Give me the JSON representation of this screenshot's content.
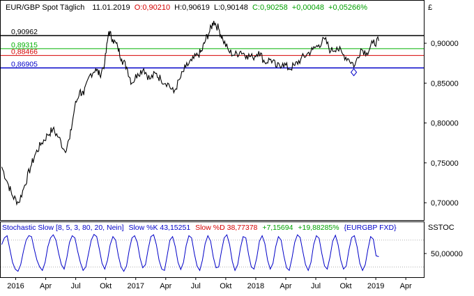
{
  "colors": {
    "frame": "#000000",
    "price_line": "#000000",
    "line_high": "#000000",
    "line_mid_green": "#00b000",
    "line_mid_red": "#d40000",
    "line_low": "#0000c8",
    "stoch_k": "#0000c8",
    "positive": "#00a000",
    "negative": "#d40000",
    "stoch_title": "#0000c8",
    "guides": "#808080"
  },
  "chart_data": [
    {
      "type": "line",
      "title": "EUR/GBP Spot Täglich",
      "header": {
        "symbol": "EUR/GBP Spot Täglich",
        "date": "11.01.2019",
        "open": "O:0,90210",
        "high": "H:0,90619",
        "low": "L:0,90148",
        "close": "C:0,90258",
        "change": "+0,00048",
        "change_pct": "+0,05266%"
      },
      "currency_symbol": "£",
      "ylim": [
        0.68,
        0.935
      ],
      "y_ticks": [
        0.7,
        0.75,
        0.8,
        0.85,
        0.9
      ],
      "y_tick_labels": [
        "0,70000",
        "0,75000",
        "0,80000",
        "0,85000",
        "0,90000"
      ],
      "horizontal_lines": [
        {
          "label": "0,90962",
          "value": 0.90962,
          "color_key": "line_high",
          "width": 1.5
        },
        {
          "label": "0,89315",
          "value": 0.89315,
          "color_key": "line_mid_green",
          "width": 1
        },
        {
          "label": "0,88466",
          "value": 0.88466,
          "color_key": "line_mid_red",
          "width": 1
        },
        {
          "label": "0,86905",
          "value": 0.86905,
          "color_key": "line_low",
          "width": 1.5
        }
      ],
      "x_ticks": [
        "2016",
        "Apr",
        "Jul",
        "Okt",
        "2017",
        "Apr",
        "Jul",
        "Okt",
        "2018",
        "Apr",
        "Jul",
        "Okt",
        "2019",
        "Apr"
      ],
      "x_tick_months": [
        0,
        3,
        6,
        9,
        12,
        15,
        18,
        21,
        24,
        27,
        30,
        33,
        36,
        39
      ],
      "x_range_months": [
        -1.5,
        40.8
      ],
      "series": [
        {
          "name": "",
          "x_months": [
            -1.4,
            -0.8,
            -0.3,
            0.3,
            0.9,
            1.5,
            2.0,
            2.6,
            3.2,
            3.7,
            4.3,
            4.9,
            5.4,
            5.9,
            6.4,
            6.8,
            7.4,
            8.0,
            8.4,
            8.9,
            9.3,
            9.7,
            10.2,
            10.6,
            11.1,
            11.6,
            12.2,
            12.8,
            13.4,
            14.0,
            14.5,
            15.2,
            15.8,
            16.4,
            17.0,
            17.6,
            18.2,
            18.6,
            19.0,
            19.4,
            19.8,
            20.3,
            20.7,
            21.3,
            21.9,
            22.5,
            23.1,
            23.7,
            24.3,
            24.9,
            25.5,
            26.1,
            26.7,
            27.3,
            27.9,
            28.5,
            29.1,
            29.7,
            30.3,
            30.9,
            31.5,
            32.1,
            32.7,
            33.3,
            33.9,
            34.5,
            35.1,
            35.7,
            36.3
          ],
          "values": [
            0.745,
            0.725,
            0.708,
            0.7,
            0.722,
            0.745,
            0.762,
            0.775,
            0.785,
            0.792,
            0.782,
            0.765,
            0.78,
            0.82,
            0.84,
            0.835,
            0.86,
            0.868,
            0.86,
            0.875,
            0.915,
            0.905,
            0.895,
            0.88,
            0.87,
            0.85,
            0.862,
            0.868,
            0.855,
            0.862,
            0.855,
            0.85,
            0.838,
            0.855,
            0.87,
            0.878,
            0.885,
            0.89,
            0.905,
            0.915,
            0.928,
            0.918,
            0.905,
            0.89,
            0.885,
            0.89,
            0.885,
            0.882,
            0.89,
            0.876,
            0.88,
            0.87,
            0.875,
            0.868,
            0.872,
            0.88,
            0.886,
            0.892,
            0.898,
            0.905,
            0.89,
            0.895,
            0.886,
            0.88,
            0.872,
            0.893,
            0.888,
            0.9,
            0.903
          ]
        }
      ],
      "marker": {
        "x_months": 33.8,
        "value": 0.868
      }
    },
    {
      "type": "line",
      "title": "Stochastic Slow [8, 5, 3, 80, 20, Nein]",
      "header": {
        "name": "Stochastic Slow [8, 5, 3, 80, 20, Nein]",
        "k_label": "Slow %K 43,15251",
        "d_label": "Slow %D 38,77378",
        "change": "+7,15694",
        "change_pct": "+19,88285%",
        "symbol": "{EURGBP FXD}"
      },
      "panel_label": "SSTOC",
      "ylim": [
        0,
        100
      ],
      "y_ticks": [
        50
      ],
      "y_tick_labels": [
        "50,00000"
      ],
      "guide_levels": [
        20,
        80
      ],
      "x_range_months": [
        -1.5,
        40.8
      ],
      "series": [
        {
          "name": "Slow %K",
          "x_start_month": -1.4,
          "x_end_month": 36.3,
          "values": [
            70,
            85,
            90,
            60,
            30,
            15,
            10,
            25,
            55,
            80,
            90,
            88,
            60,
            35,
            20,
            12,
            30,
            65,
            85,
            92,
            80,
            50,
            25,
            15,
            40,
            75,
            90,
            85,
            55,
            30,
            12,
            20,
            50,
            80,
            93,
            88,
            60,
            28,
            15,
            35,
            70,
            88,
            80,
            45,
            20,
            10,
            22,
            58,
            85,
            90,
            75,
            40,
            18,
            25,
            60,
            88,
            92,
            70,
            35,
            15,
            12,
            45,
            80,
            88,
            65,
            30,
            14,
            30,
            68,
            90,
            85,
            50,
            22,
            12,
            35,
            72,
            90,
            78,
            42,
            18,
            20,
            55,
            85,
            92,
            70,
            32,
            12,
            25,
            62,
            88,
            85,
            48,
            20,
            15,
            40,
            78,
            90,
            72,
            35,
            15,
            28,
            65,
            88,
            80,
            45,
            18,
            12,
            40,
            75,
            92,
            86,
            55,
            25,
            12,
            30,
            70,
            90,
            84,
            50,
            22,
            15,
            42,
            78,
            91,
            70,
            35,
            15,
            22,
            58,
            86,
            90,
            65,
            28,
            12,
            25,
            60,
            88,
            82,
            45,
            43
          ]
        }
      ]
    }
  ]
}
